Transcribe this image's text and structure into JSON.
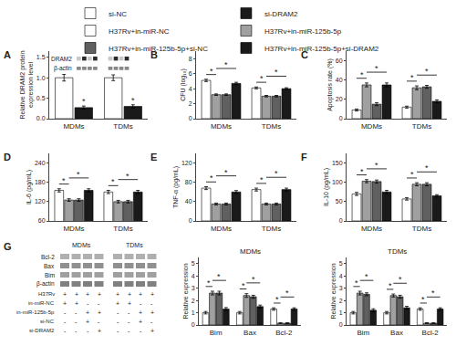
{
  "chart_data": [
    {
      "type": "bar",
      "annotations": [
        "A",
        "*",
        "*",
        {
          "text": "DRAM2"
        },
        {
          "text": "β-actin"
        }
      ],
      "ylabel": "Relative DRAM2 protein\nexpression level",
      "categories": [
        "MDMs",
        "TDMs"
      ],
      "series": [
        {
          "name": "si-NC",
          "color": "white",
          "values": [
            1.0,
            1.0
          ],
          "errors": [
            0.08,
            0.07
          ]
        },
        {
          "name": "si-DRAM2",
          "color": "#1a1a1a",
          "values": [
            0.27,
            0.3
          ],
          "errors": [
            0.04,
            0.04
          ]
        }
      ],
      "ylim": [
        0,
        1.65
      ],
      "yticks": [
        {
          "value": 0.0,
          "label": "0.0"
        },
        0.5,
        {
          "value": 1.0,
          "label": "1.0"
        },
        1.5
      ],
      "grid": false,
      "legend": "top"
    },
    {
      "type": "bar",
      "annotations": [
        "B",
        "*",
        "*",
        "*",
        "*"
      ],
      "ylabel": "CFU (log₁₀)",
      "categories": [
        "MDMs",
        "TDMs"
      ],
      "series": [
        {
          "name": "H37Rv+in-miR-NC",
          "color": "white",
          "values": [
            5.1,
            4.1
          ],
          "errors": [
            0.15,
            0.12
          ]
        },
        {
          "name": "H37Rv+in-miR-125b-5p",
          "color": "#a0a0a0",
          "values": [
            3.2,
            3.0
          ],
          "errors": [
            0.1,
            0.1
          ]
        },
        {
          "name": "H37Rv+in-miR-125b-5p+si-NC",
          "color": "#606060",
          "values": [
            3.2,
            3.0
          ],
          "errors": [
            0.1,
            0.1
          ]
        },
        {
          "name": "H37Rv+in-miR-125b-5p+si-DRAM2",
          "color": "#1a1a1a",
          "values": [
            4.7,
            4.0
          ],
          "errors": [
            0.15,
            0.12
          ]
        }
      ],
      "ylim": [
        0,
        9
      ],
      "yticks": [
        0,
        2,
        4,
        6,
        8
      ],
      "grid": false,
      "legend": "top"
    },
    {
      "type": "bar",
      "annotations": [
        "C",
        "*",
        "*",
        "*",
        "*"
      ],
      "ylabel": "Apoptosis rate (%)",
      "categories": [
        "MDMs",
        "TDMs"
      ],
      "series": [
        {
          "name": "H37Rv+in-miR-NC",
          "color": "white",
          "values": [
            9,
            12
          ],
          "errors": [
            1.0,
            1.0
          ]
        },
        {
          "name": "H37Rv+in-miR-125b-5p",
          "color": "#a0a0a0",
          "values": [
            35,
            32
          ],
          "errors": [
            2.0,
            2.0
          ]
        },
        {
          "name": "H37Rv+in-miR-125b-5p+si-NC",
          "color": "#606060",
          "values": [
            15,
            33
          ],
          "errors": [
            1.5,
            1.5
          ]
        },
        {
          "name": "H37Rv+in-miR-125b-5p+si-DRAM2",
          "color": "#1a1a1a",
          "values": [
            35,
            18
          ],
          "errors": [
            2.0,
            1.5
          ]
        }
      ],
      "ylim": [
        0,
        70
      ],
      "yticks": [
        0,
        20,
        40,
        60
      ],
      "grid": false,
      "legend": "top"
    },
    {
      "type": "bar",
      "annotations": [
        "D",
        "*",
        "*",
        "*",
        "*"
      ],
      "ylabel": "IL-6 (pg/mL)",
      "categories": [
        "MDMs",
        "TDMs"
      ],
      "series": [
        {
          "name": "H37Rv+in-miR-NC",
          "color": "white",
          "values": [
            155,
            150
          ],
          "errors": [
            5,
            5
          ]
        },
        {
          "name": "H37Rv+in-miR-125b-5p",
          "color": "#a0a0a0",
          "values": [
            125,
            120
          ],
          "errors": [
            4,
            4
          ]
        },
        {
          "name": "H37Rv+in-miR-125b-5p+si-NC",
          "color": "#606060",
          "values": [
            125,
            120
          ],
          "errors": [
            4,
            4
          ]
        },
        {
          "name": "H37Rv+in-miR-125b-5p+si-DRAM2",
          "color": "#1a1a1a",
          "values": [
            155,
            150
          ],
          "errors": [
            5,
            5
          ]
        }
      ],
      "ylim": [
        60,
        270
      ],
      "yticks": [
        60,
        120,
        180,
        240
      ],
      "grid": false,
      "legend": "top"
    },
    {
      "type": "bar",
      "annotations": [
        "E",
        "*",
        "*",
        "*",
        "*"
      ],
      "ylabel": "TNF-α (pg/mL)",
      "categories": [
        "MDMs",
        "TDMs"
      ],
      "series": [
        {
          "name": "H37Rv+in-miR-NC",
          "color": "white",
          "values": [
            68,
            65
          ],
          "errors": [
            3,
            3
          ]
        },
        {
          "name": "H37Rv+in-miR-125b-5p",
          "color": "#a0a0a0",
          "values": [
            35,
            35
          ],
          "errors": [
            2,
            2
          ]
        },
        {
          "name": "H37Rv+in-miR-125b-5p+si-NC",
          "color": "#606060",
          "values": [
            35,
            35
          ],
          "errors": [
            2,
            2
          ]
        },
        {
          "name": "H37Rv+in-miR-125b-5p+si-DRAM2",
          "color": "#1a1a1a",
          "values": [
            60,
            65
          ],
          "errors": [
            3,
            3
          ]
        }
      ],
      "ylim": [
        0,
        140
      ],
      "yticks": [
        0,
        40,
        80,
        120
      ],
      "grid": false,
      "legend": "top"
    },
    {
      "type": "bar",
      "annotations": [
        "F",
        "*",
        "*",
        "*",
        "*"
      ],
      "ylabel": "IL-10 (pg/mL)",
      "categories": [
        "MDMs",
        "TDMs"
      ],
      "series": [
        {
          "name": "H37Rv+in-miR-NC",
          "color": "white",
          "values": [
            70,
            57
          ],
          "errors": [
            4,
            3
          ]
        },
        {
          "name": "H37Rv+in-miR-125b-5p",
          "color": "#a0a0a0",
          "values": [
            103,
            95
          ],
          "errors": [
            4,
            4
          ]
        },
        {
          "name": "H37Rv+in-miR-125b-5p+si-NC",
          "color": "#606060",
          "values": [
            102,
            95
          ],
          "errors": [
            4,
            4
          ]
        },
        {
          "name": "H37Rv+in-miR-125b-5p+si-DRAM2",
          "color": "#1a1a1a",
          "values": [
            75,
            65
          ],
          "errors": [
            4,
            3
          ]
        }
      ],
      "ylim": [
        0,
        175
      ],
      "yticks": [
        0,
        50,
        100,
        150
      ],
      "grid": false,
      "legend": "top"
    },
    {
      "type": "blot",
      "annotations": [
        "G",
        {
          "text": "H37Rv",
          "labels": [
            "+",
            "+",
            "+",
            "+",
            "+",
            "+",
            "+",
            "+"
          ]
        },
        {
          "text": "in-miR-NC",
          "labels": [
            "+",
            "+",
            "-",
            "-",
            "+",
            "+",
            "-",
            "-"
          ]
        },
        {
          "text": "in-miR-125b-5p",
          "labels": [
            "-",
            "-",
            "+",
            "+",
            "-",
            "-",
            "+",
            "+"
          ]
        },
        {
          "text": "si-NC",
          "labels": [
            "-",
            "-",
            "+",
            "-",
            "-",
            "-",
            "+",
            "-"
          ]
        },
        {
          "text": "si-DRAM2",
          "labels": [
            "-",
            "-",
            "-",
            "+",
            "-",
            "-",
            "-",
            "+"
          ]
        }
      ],
      "categories": [
        "MDMs",
        "TDMs"
      ],
      "series": [
        {
          "name": "Bcl-2"
        },
        {
          "name": "Bax"
        },
        {
          "name": "Bim"
        },
        {
          "name": "β-actin"
        }
      ]
    },
    {
      "type": "bar",
      "title": "MDMs",
      "annotations": [
        "*",
        "*",
        "*",
        "*",
        "*",
        "*"
      ],
      "ylabel": "Relative expression",
      "categories": [
        "Bim",
        "Bax",
        "Bcl-2"
      ],
      "series": [
        {
          "name": "H37Rv+in-miR-NC",
          "color": "white",
          "values": [
            1.0,
            1.0,
            1.3
          ],
          "errors": [
            0.1,
            0.1,
            0.1
          ]
        },
        {
          "name": "H37Rv+in-miR-125b-5p",
          "color": "#a0a0a0",
          "values": [
            2.6,
            2.4,
            0.15
          ],
          "errors": [
            0.15,
            0.15,
            0.03
          ]
        },
        {
          "name": "H37Rv+in-miR-125b-5p+si-NC",
          "color": "#606060",
          "values": [
            2.6,
            2.3,
            0.15
          ],
          "errors": [
            0.15,
            0.12,
            0.03
          ]
        },
        {
          "name": "H37Rv+in-miR-125b-5p+si-DRAM2",
          "color": "#1a1a1a",
          "values": [
            1.3,
            1.5,
            1.3
          ],
          "errors": [
            0.12,
            0.12,
            0.1
          ]
        }
      ],
      "ylim": [
        0,
        5.5
      ],
      "yticks": [
        0,
        1,
        2,
        3,
        4,
        5
      ],
      "grid": false,
      "legend": "top"
    },
    {
      "type": "bar",
      "title": "TDMs",
      "annotations": [
        "*",
        "*",
        "*",
        "*",
        "*",
        "*"
      ],
      "ylabel": "Relative expression",
      "categories": [
        "Bim",
        "Bax",
        "Bcl-2"
      ],
      "series": [
        {
          "name": "H37Rv+in-miR-NC",
          "color": "white",
          "values": [
            1.0,
            1.0,
            1.3
          ],
          "errors": [
            0.1,
            0.1,
            0.1
          ]
        },
        {
          "name": "H37Rv+in-miR-125b-5p",
          "color": "#a0a0a0",
          "values": [
            2.6,
            2.4,
            0.15
          ],
          "errors": [
            0.15,
            0.12,
            0.03
          ]
        },
        {
          "name": "H37Rv+in-miR-125b-5p+si-NC",
          "color": "#606060",
          "values": [
            2.5,
            2.3,
            0.15
          ],
          "errors": [
            0.12,
            0.12,
            0.03
          ]
        },
        {
          "name": "H37Rv+in-miR-125b-5p+si-DRAM2",
          "color": "#1a1a1a",
          "values": [
            1.2,
            1.4,
            1.3
          ],
          "errors": [
            0.12,
            0.12,
            0.1
          ]
        }
      ],
      "ylim": [
        0,
        5.5
      ],
      "yticks": [
        0,
        1,
        2,
        3,
        4,
        5
      ],
      "grid": false,
      "legend": "top"
    }
  ]
}
